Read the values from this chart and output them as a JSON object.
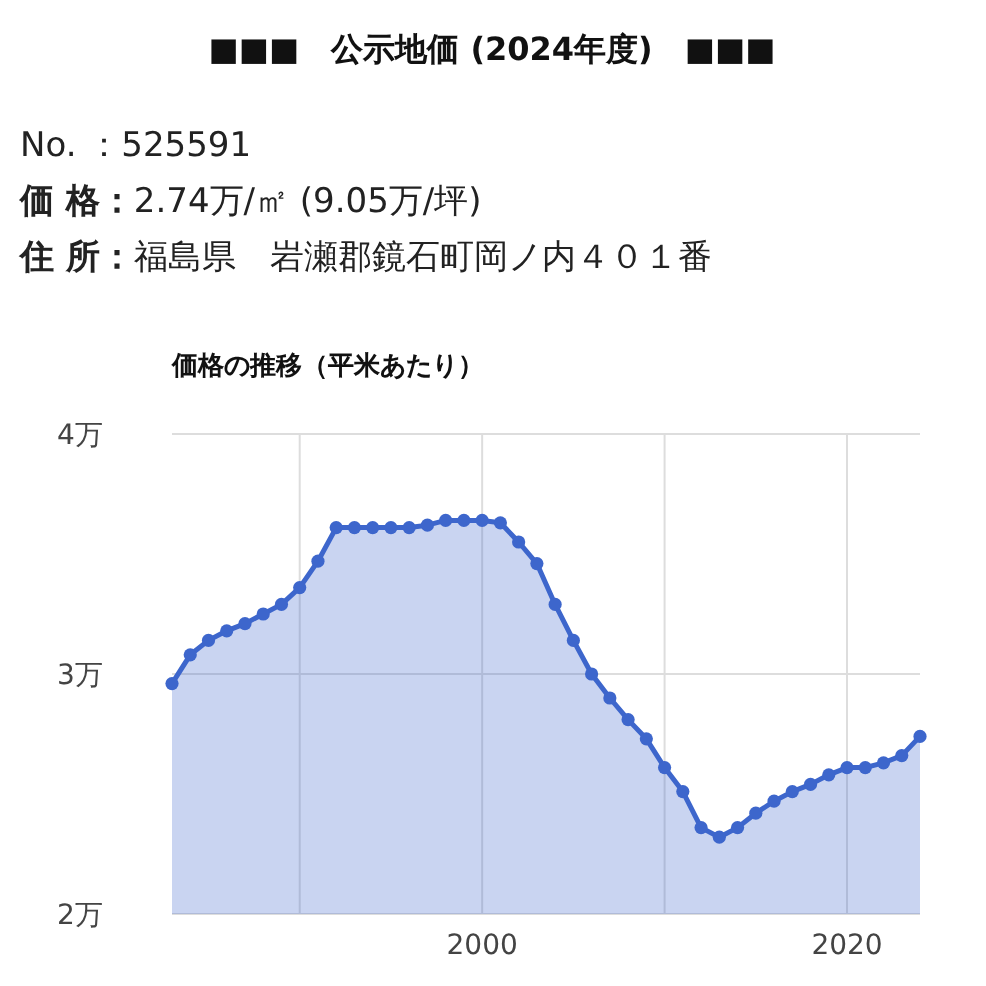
{
  "chart_data": {
    "type": "area",
    "title": "■■■　公示地価 (2024年度)　■■■",
    "subtitle": "価格の推移（平米あたり）",
    "annotations": [
      "No. ：525591",
      "価 格：2.74万/㎡ (9.05万/坪)",
      "住 所：福島県　岩瀬郡鏡石町岡ノ内４０１番"
    ],
    "x": [
      1983,
      1984,
      1985,
      1986,
      1987,
      1988,
      1989,
      1990,
      1991,
      1992,
      1993,
      1994,
      1995,
      1996,
      1997,
      1998,
      1999,
      2000,
      2001,
      2002,
      2003,
      2004,
      2005,
      2006,
      2007,
      2008,
      2009,
      2010,
      2011,
      2012,
      2013,
      2014,
      2015,
      2016,
      2017,
      2018,
      2019,
      2020,
      2021,
      2022,
      2023,
      2024
    ],
    "series": [
      {
        "color": "#3d66cc",
        "values": [
          2.96,
          3.08,
          3.14,
          3.18,
          3.21,
          3.25,
          3.29,
          3.36,
          3.47,
          3.61,
          3.61,
          3.61,
          3.61,
          3.61,
          3.62,
          3.64,
          3.64,
          3.64,
          3.63,
          3.55,
          3.46,
          3.29,
          3.14,
          3.0,
          2.9,
          2.81,
          2.73,
          2.61,
          2.51,
          2.36,
          2.32,
          2.36,
          2.42,
          2.47,
          2.51,
          2.54,
          2.58,
          2.61,
          2.61,
          2.63,
          2.66,
          2.74
        ]
      }
    ],
    "xlim": [
      1983,
      2024
    ],
    "ylim": [
      2,
      4
    ],
    "xticks": [
      {
        "value": 1990,
        "label": null
      },
      2000,
      {
        "value": 2010,
        "label": null
      },
      2020
    ],
    "yticks": [
      {
        "value": 2,
        "label": "2万"
      },
      {
        "value": 3,
        "label": "3万"
      },
      {
        "value": 4,
        "label": "4万"
      }
    ],
    "grid": true,
    "marker": "circle"
  }
}
